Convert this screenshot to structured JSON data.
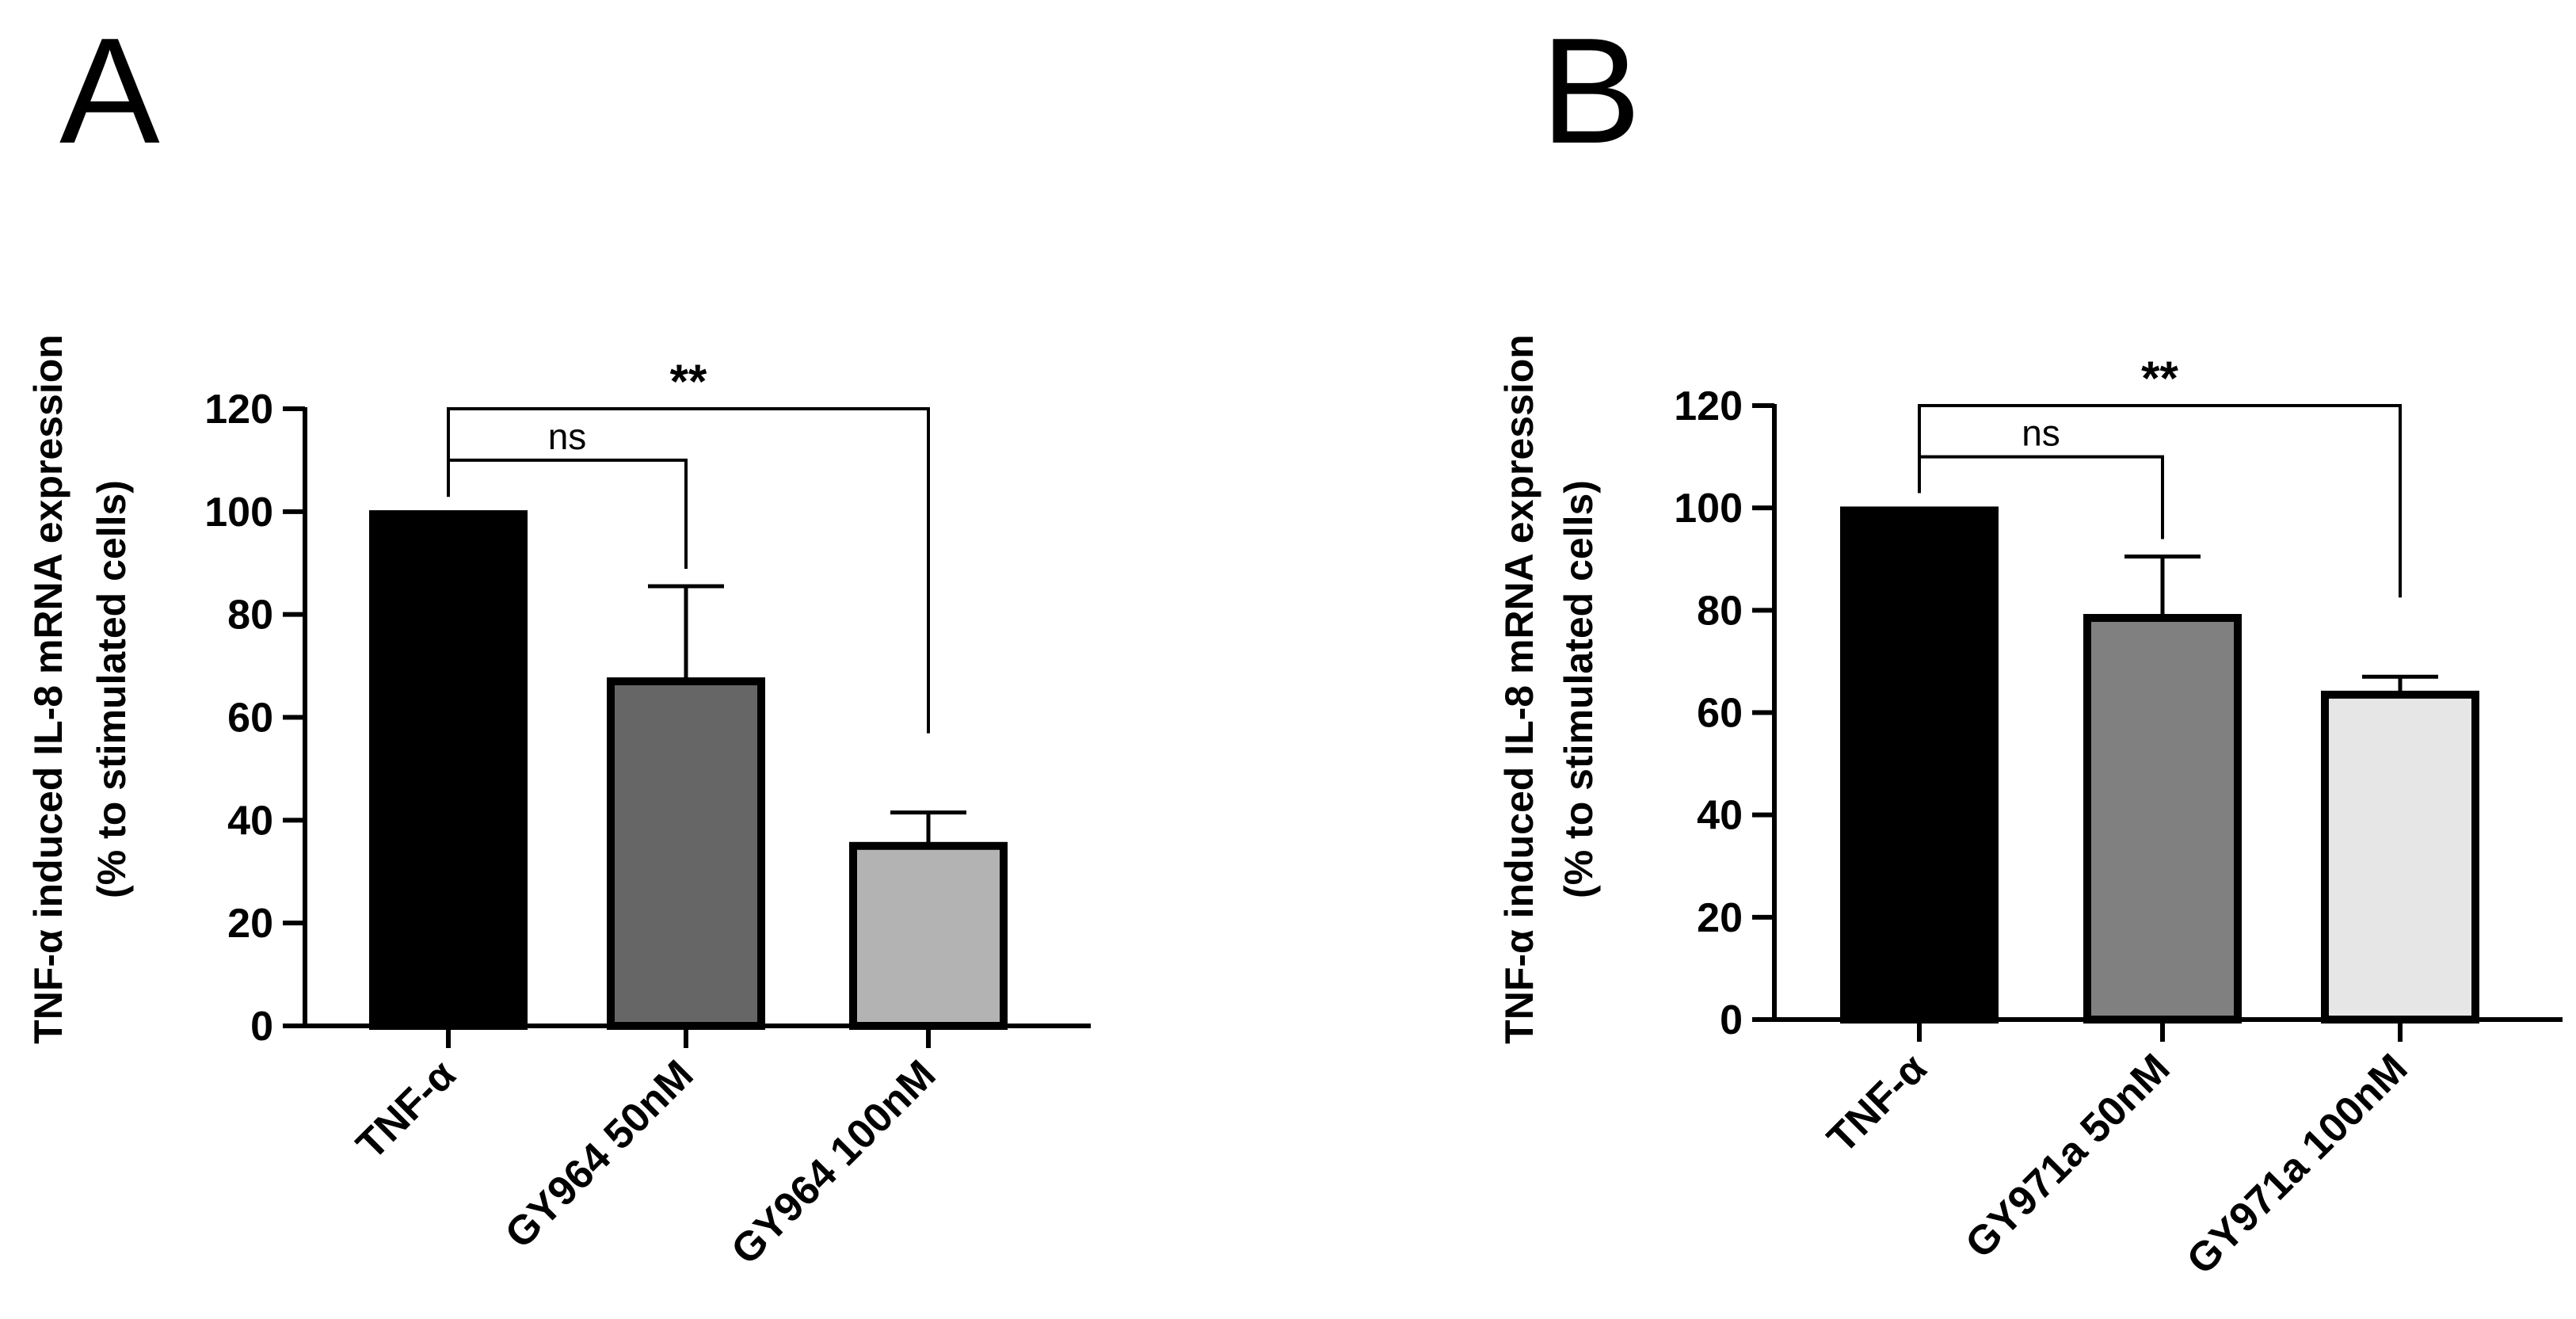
{
  "figure": {
    "panels": [
      "A",
      "B"
    ],
    "ylabel_line1": "TNF-α induced IL-8 mRNA expression",
    "ylabel_line2": "(% to stimulated cells)"
  },
  "chart_data": [
    {
      "type": "bar",
      "panel_label": "A",
      "title": "",
      "xlabel": "",
      "ylabel": "TNF-α induced IL-8 mRNA expression (% to stimulated cells)",
      "ylim": [
        0,
        120
      ],
      "yticks": [
        0,
        20,
        40,
        60,
        80,
        100,
        120
      ],
      "categories": [
        "TNF-α",
        "GY964 50nM",
        "GY964 100nM"
      ],
      "values": [
        99.5,
        67,
        35
      ],
      "error_upper": [
        99.5,
        85.5,
        41.5
      ],
      "bar_colors": [
        "#000000",
        "#666666",
        "#b3b3b3"
      ],
      "grid": false,
      "significance": [
        {
          "from": 0,
          "to": 1,
          "label": "ns"
        },
        {
          "from": 0,
          "to": 2,
          "label": "**"
        }
      ]
    },
    {
      "type": "bar",
      "panel_label": "B",
      "title": "",
      "xlabel": "",
      "ylabel": "TNF-α induced IL-8 mRNA expression (% to stimulated cells)",
      "ylim": [
        0,
        120
      ],
      "yticks": [
        0,
        20,
        40,
        60,
        80,
        100,
        120
      ],
      "categories": [
        "TNF-α",
        "GY971a 50nM",
        "GY971a 100nM"
      ],
      "values": [
        99.5,
        78.5,
        63.5
      ],
      "error_upper": [
        99.5,
        90.5,
        67
      ],
      "bar_colors": [
        "#000000",
        "#808080",
        "#e6e6e6"
      ],
      "grid": false,
      "significance": [
        {
          "from": 0,
          "to": 1,
          "label": "ns"
        },
        {
          "from": 0,
          "to": 2,
          "label": "**"
        }
      ]
    }
  ]
}
